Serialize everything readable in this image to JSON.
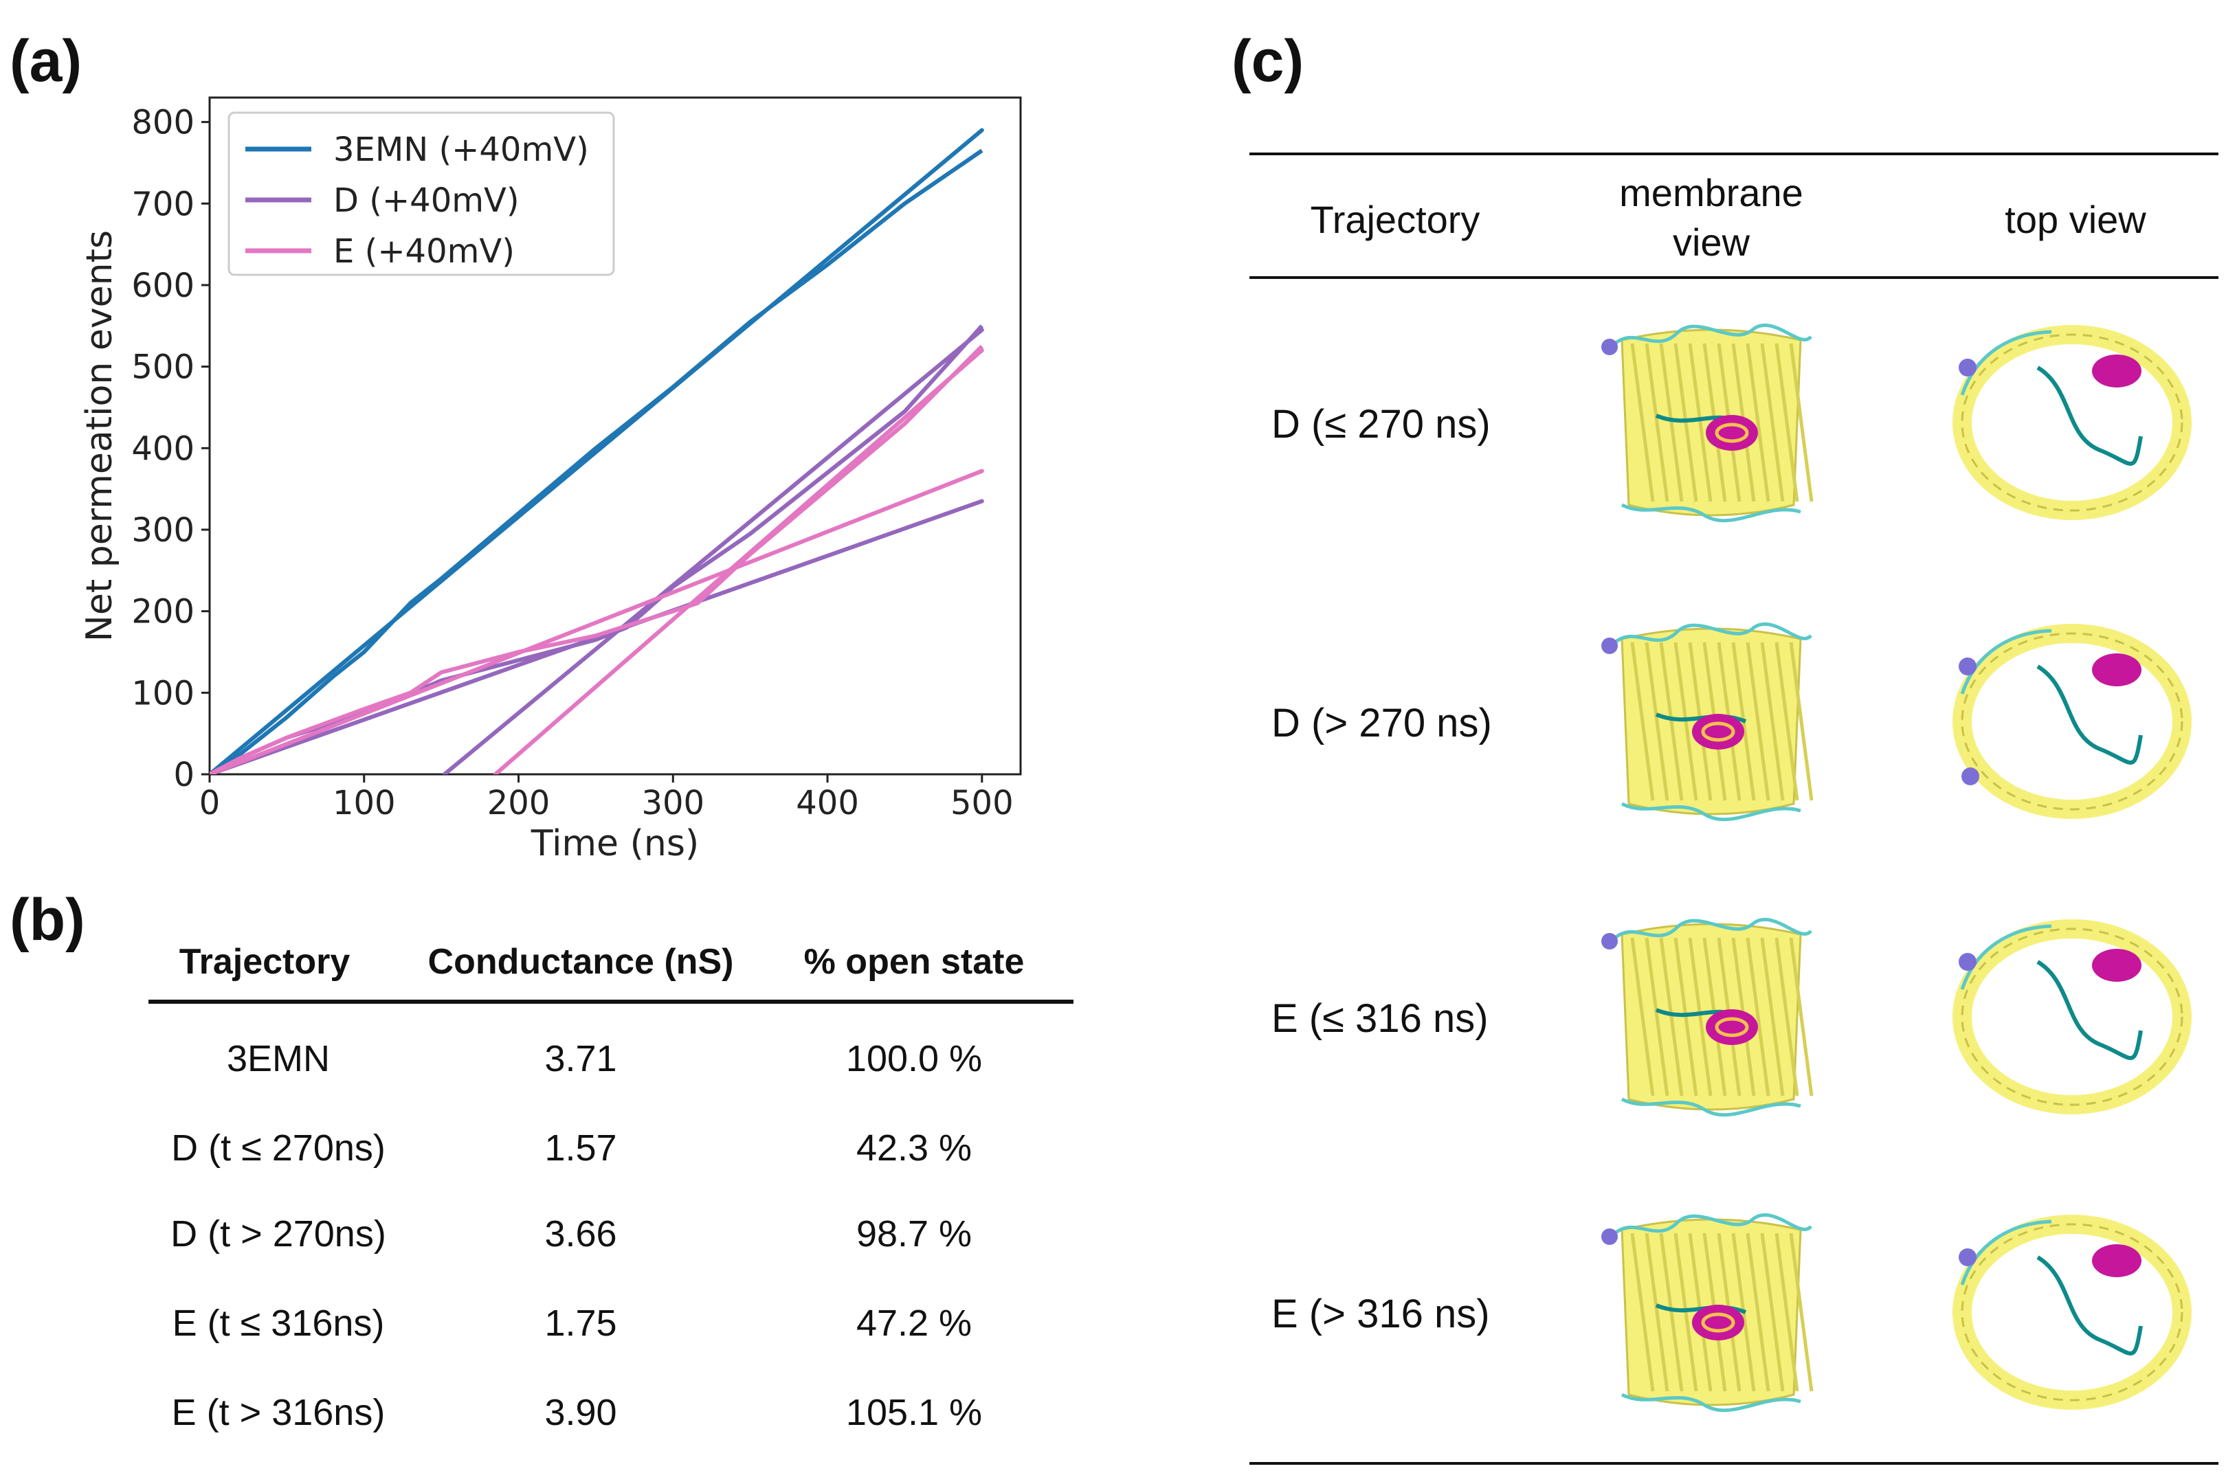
{
  "panels": {
    "a": "(a)",
    "b": "(b)",
    "c": "(c)"
  },
  "chart_data": {
    "type": "line",
    "xlabel": "Time (ns)",
    "ylabel": "Net permeation events",
    "xlim": [
      0,
      525
    ],
    "ylim": [
      0,
      830
    ],
    "xticks": [
      0,
      100,
      200,
      300,
      400,
      500
    ],
    "yticks": [
      0,
      100,
      200,
      300,
      400,
      500,
      600,
      700,
      800
    ],
    "legend": {
      "placement": "top-left"
    },
    "series": [
      {
        "name": "3EMN (+40mV)",
        "color": "#1f77b4",
        "trajectory": [
          [
            0,
            0
          ],
          [
            20,
            25
          ],
          [
            50,
            70
          ],
          [
            80,
            120
          ],
          [
            100,
            150
          ],
          [
            130,
            210
          ],
          [
            150,
            240
          ],
          [
            200,
            320
          ],
          [
            250,
            400
          ],
          [
            300,
            475
          ],
          [
            350,
            555
          ],
          [
            400,
            625
          ],
          [
            450,
            700
          ],
          [
            500,
            765
          ]
        ],
        "fits": [
          {
            "x": [
              0,
              500
            ],
            "y": [
              0,
              790
            ]
          }
        ]
      },
      {
        "name": "D (+40mV)",
        "color": "#9467bd",
        "trajectory": [
          [
            0,
            0
          ],
          [
            20,
            20
          ],
          [
            50,
            45
          ],
          [
            100,
            75
          ],
          [
            150,
            115
          ],
          [
            200,
            140
          ],
          [
            250,
            165
          ],
          [
            270,
            180
          ],
          [
            300,
            230
          ],
          [
            350,
            295
          ],
          [
            400,
            370
          ],
          [
            450,
            445
          ],
          [
            500,
            550
          ]
        ],
        "fits": [
          {
            "x": [
              0,
              500
            ],
            "y": [
              0,
              335
            ]
          },
          {
            "x": [
              152,
              500
            ],
            "y": [
              0,
              545
            ]
          }
        ]
      },
      {
        "name": "E (+40mV)",
        "color": "#e377c2",
        "trajectory": [
          [
            0,
            0
          ],
          [
            20,
            20
          ],
          [
            50,
            45
          ],
          [
            100,
            80
          ],
          [
            130,
            100
          ],
          [
            150,
            125
          ],
          [
            200,
            150
          ],
          [
            250,
            170
          ],
          [
            300,
            200
          ],
          [
            316,
            210
          ],
          [
            350,
            270
          ],
          [
            400,
            350
          ],
          [
            450,
            430
          ],
          [
            500,
            525
          ]
        ],
        "fits": [
          {
            "x": [
              0,
              500
            ],
            "y": [
              0,
              372
            ]
          },
          {
            "x": [
              185,
              500
            ],
            "y": [
              0,
              520
            ]
          }
        ]
      }
    ]
  },
  "table_b": {
    "headers": [
      "Trajectory",
      "Conductance (nS)",
      "% open state"
    ],
    "rows": [
      [
        "3EMN",
        "3.71",
        "100.0 %"
      ],
      [
        "D (t ≤ 270ns)",
        "1.57",
        "42.3 %"
      ],
      [
        "D (t > 270ns)",
        "3.66",
        "98.7 %"
      ],
      [
        "E (t ≤ 316ns)",
        "1.75",
        "47.2 %"
      ],
      [
        "E (t > 316ns)",
        "3.90",
        "105.1 %"
      ]
    ]
  },
  "table_c": {
    "headers": [
      "Trajectory",
      "membrane\nview",
      "top view"
    ],
    "rows": [
      "D (≤ 270 ns)",
      "D (> 270 ns)",
      "E (≤ 316 ns)",
      "E (> 316 ns)"
    ]
  },
  "colors": {
    "barrel": "#f5f07a",
    "helix": "#c6169b",
    "loop": "#5bc8c8",
    "turn": "#7b6fd6"
  }
}
